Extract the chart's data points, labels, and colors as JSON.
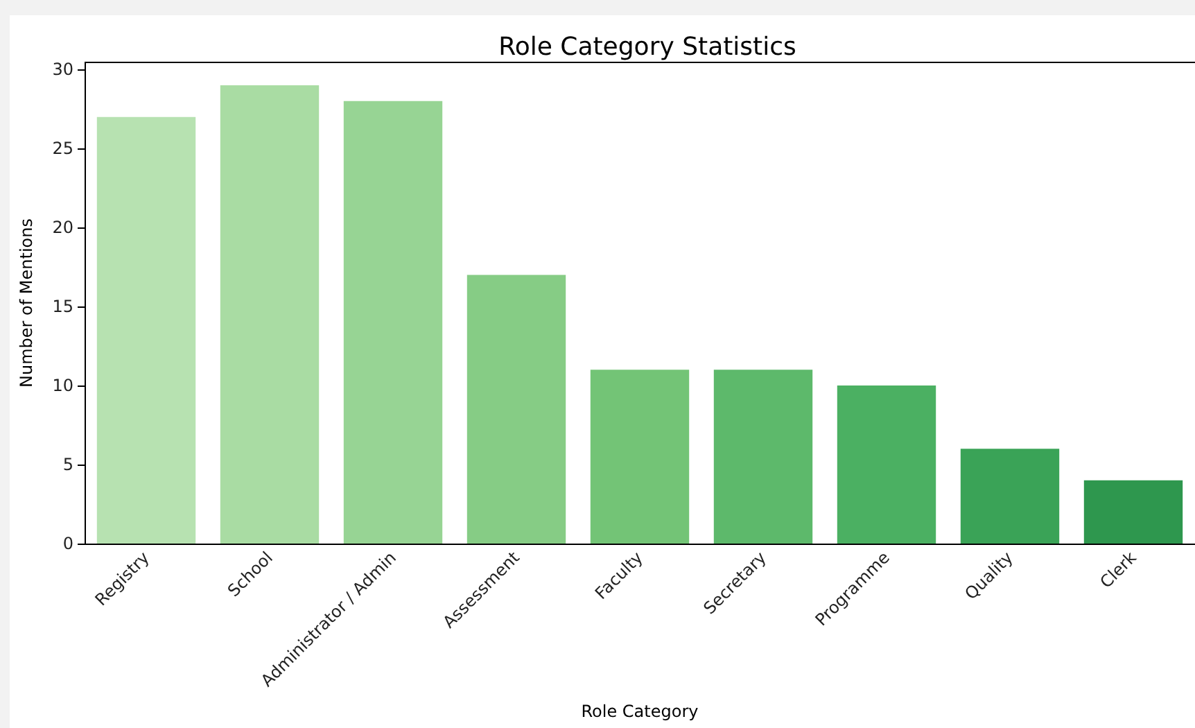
{
  "chart_data": {
    "type": "bar",
    "title": "Role Category Statistics",
    "xlabel": "Role Category",
    "ylabel": "Number of Mentions",
    "categories": [
      "Registry",
      "School",
      "Administrator / Admin",
      "Assessment",
      "Faculty",
      "Secretary",
      "Programme",
      "Quality",
      "Clerk"
    ],
    "values": [
      27,
      29,
      28,
      17,
      11,
      11,
      10,
      6,
      4
    ],
    "colors": [
      "#b7e2b1",
      "#a9dca3",
      "#97d494",
      "#86cc85",
      "#73c476",
      "#5db96b",
      "#4bb062",
      "#3aa357",
      "#2e974e"
    ],
    "ylim": [
      0,
      30.45
    ],
    "yticks": [
      0,
      5,
      10,
      15,
      20,
      25,
      30
    ],
    "grid": false
  }
}
